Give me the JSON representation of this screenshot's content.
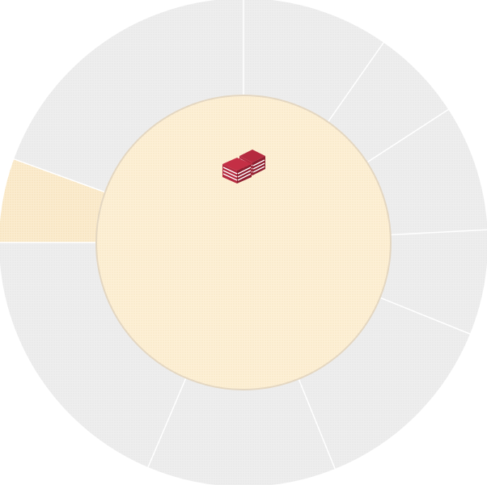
{
  "wheel": {
    "segment_count": 9,
    "highlighted_index": 7,
    "colors": {
      "segment_fill": "#eeeeee",
      "segment_dot": "#e3e3e3",
      "highlight_fill": "#fbeccf",
      "highlight_dot": "#f0d9a8",
      "divider": "#ffffff",
      "center_fill": "#fdf0d6",
      "center_dot": "#f3e0b7",
      "center_edge": "#e7dccd"
    }
  },
  "center": {
    "icon": "stacked-books-icon",
    "icon_color": "#b52a3f"
  }
}
